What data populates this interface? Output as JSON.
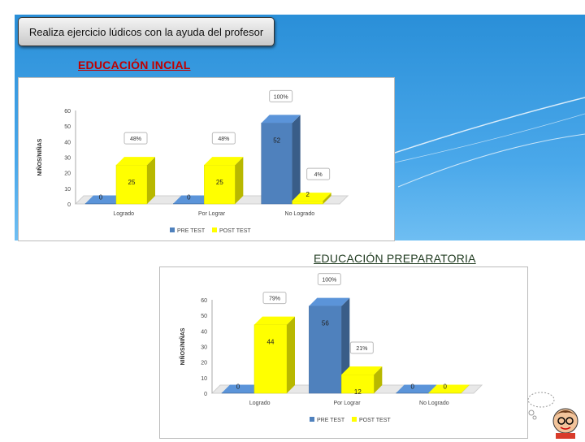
{
  "header": {
    "title": "Realiza ejercicio lúdicos con la ayuda del profesor"
  },
  "sections": [
    {
      "title": "EDUCACIÓN INCIAL"
    },
    {
      "title": "EDUCACIÓN  PREPARATORIA"
    }
  ],
  "colors": {
    "pre": "#4f81bd",
    "post": "#ffff00",
    "background": "#2a8fd8"
  },
  "chart_data": [
    {
      "type": "bar",
      "title": "",
      "ylabel": "NIÑOS/NIÑAS",
      "xlabel": "",
      "ylim": [
        0,
        60
      ],
      "yticks": [
        0,
        10,
        20,
        30,
        40,
        50,
        60
      ],
      "categories": [
        "Logrado",
        "Por Lograr",
        "No Logrado"
      ],
      "series": [
        {
          "name": "PRE TEST",
          "values": [
            0,
            0,
            52
          ],
          "labels": [
            "0",
            "0",
            "52"
          ],
          "percent": [
            "",
            "",
            "100%"
          ]
        },
        {
          "name": "POST TEST",
          "values": [
            25,
            25,
            2
          ],
          "labels": [
            "25",
            "25",
            "2"
          ],
          "percent": [
            "48%",
            "48%",
            "4%"
          ]
        }
      ],
      "legend": "bottom",
      "grid": false
    },
    {
      "type": "bar",
      "title": "",
      "ylabel": "NIÑOS/NIÑAS",
      "xlabel": "",
      "ylim": [
        0,
        60
      ],
      "yticks": [
        0,
        10,
        20,
        30,
        40,
        50,
        60
      ],
      "categories": [
        "Logrado",
        "Por Lograr",
        "No Logrado"
      ],
      "series": [
        {
          "name": "PRE TEST",
          "values": [
            0,
            56,
            0
          ],
          "labels": [
            "0",
            "56",
            "0"
          ],
          "percent": [
            "",
            "100%",
            ""
          ]
        },
        {
          "name": "POST TEST",
          "values": [
            44,
            12,
            0
          ],
          "labels": [
            "44",
            "12",
            "0"
          ],
          "percent": [
            "79%",
            "21%",
            ""
          ]
        }
      ],
      "legend": "bottom",
      "grid": false
    }
  ]
}
